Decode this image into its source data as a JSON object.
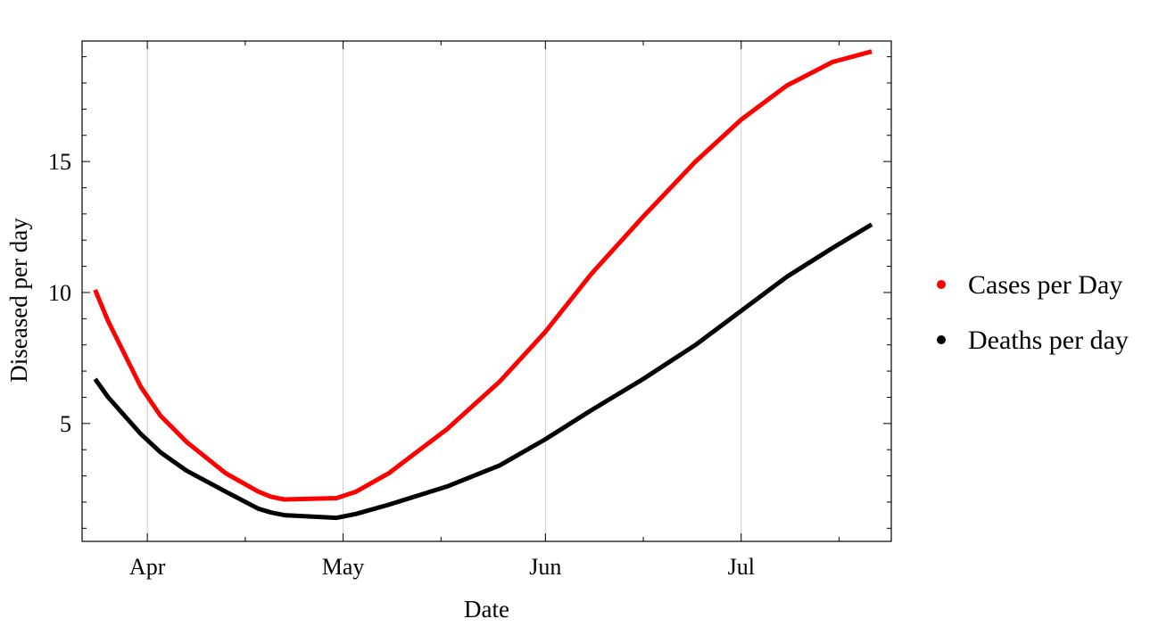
{
  "chart_data": {
    "type": "line",
    "xlabel": "Date",
    "ylabel": "Diseased per day",
    "x_ticks": [
      "Apr",
      "May",
      "Jun",
      "Jul"
    ],
    "y_ticks": [
      5,
      10,
      15
    ],
    "ylim": [
      0.5,
      19.6
    ],
    "xlim": [
      "2020-03-22",
      "2020-07-24"
    ],
    "grid": "vertical at major x ticks",
    "legend_position": "right",
    "series": [
      {
        "name": "Cases per Day",
        "color": "#ff0000",
        "x": [
          "2020-03-24",
          "2020-03-26",
          "2020-03-28",
          "2020-03-31",
          "2020-04-03",
          "2020-04-07",
          "2020-04-13",
          "2020-04-18",
          "2020-04-20",
          "2020-04-22",
          "2020-04-30",
          "2020-05-03",
          "2020-05-08",
          "2020-05-17",
          "2020-05-25",
          "2020-06-01",
          "2020-06-08",
          "2020-06-16",
          "2020-06-24",
          "2020-07-01",
          "2020-07-08",
          "2020-07-15",
          "2020-07-21"
        ],
        "values": [
          10.1,
          8.9,
          7.9,
          6.4,
          5.3,
          4.3,
          3.1,
          2.4,
          2.2,
          2.1,
          2.15,
          2.4,
          3.1,
          4.8,
          6.6,
          8.5,
          10.7,
          12.9,
          15.0,
          16.6,
          17.9,
          18.8,
          19.2
        ]
      },
      {
        "name": "Deaths per day",
        "color": "#000000",
        "x": [
          "2020-03-24",
          "2020-03-26",
          "2020-03-31",
          "2020-04-03",
          "2020-04-07",
          "2020-04-13",
          "2020-04-18",
          "2020-04-20",
          "2020-04-22",
          "2020-04-30",
          "2020-05-03",
          "2020-05-08",
          "2020-05-17",
          "2020-05-25",
          "2020-06-01",
          "2020-06-08",
          "2020-06-16",
          "2020-06-24",
          "2020-07-01",
          "2020-07-08",
          "2020-07-15",
          "2020-07-21"
        ],
        "values": [
          6.7,
          6.0,
          4.6,
          3.9,
          3.2,
          2.4,
          1.75,
          1.6,
          1.5,
          1.4,
          1.55,
          1.9,
          2.6,
          3.4,
          4.4,
          5.5,
          6.7,
          8.0,
          9.3,
          10.6,
          11.7,
          12.6
        ]
      }
    ]
  }
}
